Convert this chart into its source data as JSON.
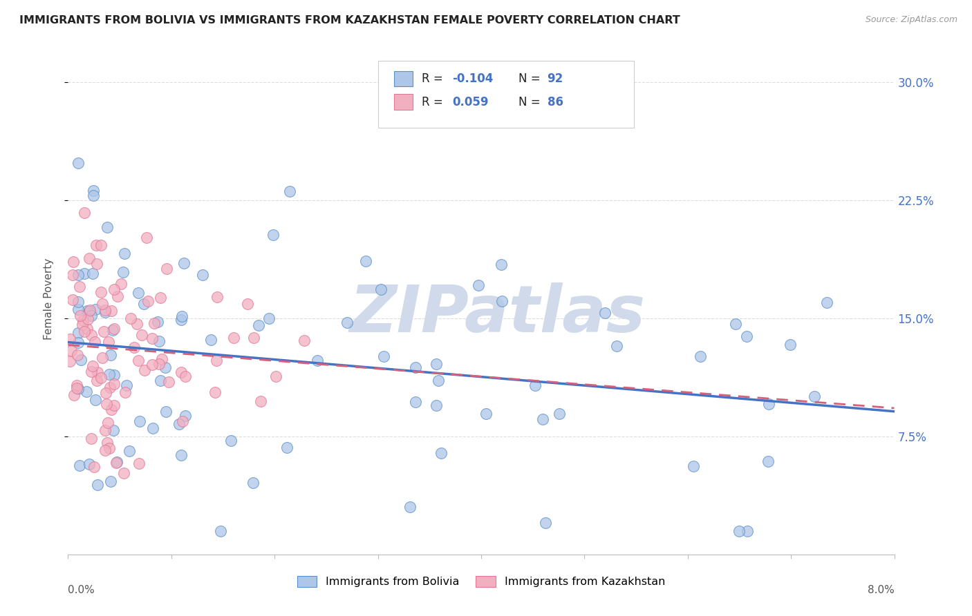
{
  "title": "IMMIGRANTS FROM BOLIVIA VS IMMIGRANTS FROM KAZAKHSTAN FEMALE POVERTY CORRELATION CHART",
  "source": "Source: ZipAtlas.com",
  "ylabel": "Female Poverty",
  "bolivia_R": "-0.104",
  "bolivia_N": "92",
  "kazakhstan_R": "0.059",
  "kazakhstan_N": "86",
  "bolivia_color": "#aec6e8",
  "kazakhstan_color": "#f2afc0",
  "bolivia_edge_color": "#5b8fc9",
  "kazakhstan_edge_color": "#e07898",
  "bolivia_line_color": "#4472c4",
  "kazakhstan_line_color": "#d4607a",
  "xlim": [
    0.0,
    0.08
  ],
  "ylim": [
    0.0,
    0.325
  ],
  "ytick_vals": [
    0.075,
    0.15,
    0.225,
    0.3
  ],
  "ytick_labels": [
    "7.5%",
    "15.0%",
    "22.5%",
    "30.0%"
  ],
  "xtick_vals": [
    0.0,
    0.01,
    0.02,
    0.03,
    0.04,
    0.05,
    0.06,
    0.07,
    0.08
  ],
  "watermark_text": "ZIPatlas",
  "watermark_color": "#d0daea",
  "bolivia_seed": 42,
  "kazakhstan_seed": 7
}
